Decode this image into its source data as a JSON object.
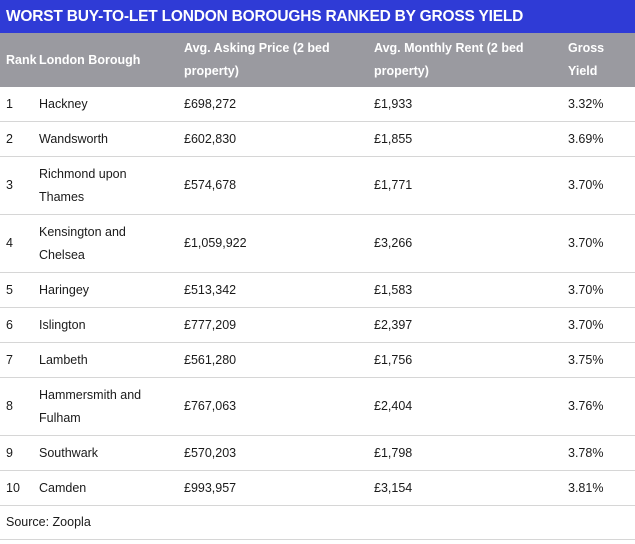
{
  "title": "WORST BUY-TO-LET LONDON BOROUGHS RANKED BY GROSS YIELD",
  "columns": {
    "rank": "Rank",
    "borough": "London Borough",
    "price": "Avg. Asking Price (2 bed property)",
    "rent": "Avg. Monthly Rent (2 bed property)",
    "yield": "Gross Yield"
  },
  "rows": [
    {
      "rank": "1",
      "borough": "Hackney",
      "price": "£698,272",
      "rent": "£1,933",
      "yield": "3.32%"
    },
    {
      "rank": "2",
      "borough": "Wandsworth",
      "price": "£602,830",
      "rent": "£1,855",
      "yield": "3.69%"
    },
    {
      "rank": "3",
      "borough": "Richmond upon Thames",
      "price": "£574,678",
      "rent": "£1,771",
      "yield": "3.70%"
    },
    {
      "rank": "4",
      "borough": "Kensington and Chelsea",
      "price": "£1,059,922",
      "rent": "£3,266",
      "yield": "3.70%"
    },
    {
      "rank": "5",
      "borough": "Haringey",
      "price": "£513,342",
      "rent": "£1,583",
      "yield": "3.70%"
    },
    {
      "rank": "6",
      "borough": "Islington",
      "price": "£777,209",
      "rent": "£2,397",
      "yield": "3.70%"
    },
    {
      "rank": "7",
      "borough": "Lambeth",
      "price": "£561,280",
      "rent": "£1,756",
      "yield": "3.75%"
    },
    {
      "rank": "8",
      "borough": "Hammersmith and Fulham",
      "price": "£767,063",
      "rent": "£2,404",
      "yield": "3.76%"
    },
    {
      "rank": "9",
      "borough": "Southwark",
      "price": "£570,203",
      "rent": "£1,798",
      "yield": "3.78%"
    },
    {
      "rank": "10",
      "borough": "Camden",
      "price": "£993,957",
      "rent": "£3,154",
      "yield": "3.81%"
    }
  ],
  "source": "Source: Zoopla"
}
